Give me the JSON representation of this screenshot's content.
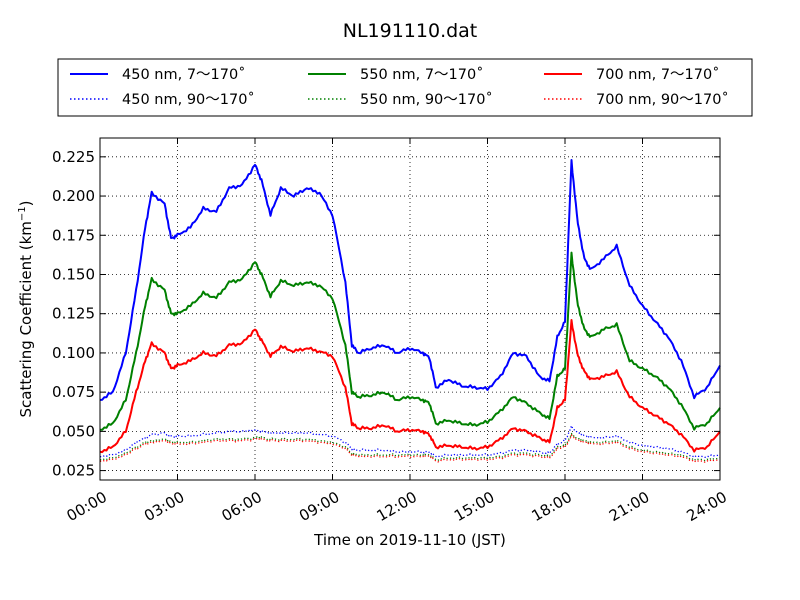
{
  "chart_data": {
    "type": "line",
    "title": "NL191110.dat",
    "xlabel": "Time on 2019-11-10 (JST)",
    "ylabel": "Scattering Coefficient (km",
    "ylabel_sup": "−1",
    "ylabel_end": ")",
    "xlim": [
      0,
      24
    ],
    "ylim": [
      0.019,
      0.237
    ],
    "x_ticks": [
      {
        "value": 0,
        "label": "00:00"
      },
      {
        "value": 3,
        "label": "03:00"
      },
      {
        "value": 6,
        "label": "06:00"
      },
      {
        "value": 9,
        "label": "09:00"
      },
      {
        "value": 12,
        "label": "12:00"
      },
      {
        "value": 15,
        "label": "15:00"
      },
      {
        "value": 18,
        "label": "18:00"
      },
      {
        "value": 21,
        "label": "21:00"
      },
      {
        "value": 24,
        "label": "24:00"
      }
    ],
    "y_ticks": [
      {
        "value": 0.025,
        "label": "0.025"
      },
      {
        "value": 0.05,
        "label": "0.050"
      },
      {
        "value": 0.075,
        "label": "0.075"
      },
      {
        "value": 0.1,
        "label": "0.100"
      },
      {
        "value": 0.125,
        "label": "0.125"
      },
      {
        "value": 0.15,
        "label": "0.150"
      },
      {
        "value": 0.175,
        "label": "0.175"
      },
      {
        "value": 0.2,
        "label": "0.200"
      },
      {
        "value": 0.225,
        "label": "0.225"
      }
    ],
    "grid": true,
    "legend_position": "top, above plot (3 columns)",
    "x": [
      0,
      0.5,
      1.0,
      1.4,
      1.75,
      2.0,
      2.5,
      2.75,
      3.0,
      3.5,
      4.0,
      4.5,
      5.0,
      5.5,
      6.0,
      6.25,
      6.6,
      7.0,
      7.5,
      8.0,
      8.5,
      9.0,
      9.5,
      9.75,
      10.0,
      10.5,
      11.0,
      11.5,
      12.0,
      12.5,
      12.75,
      13.0,
      13.5,
      14.0,
      14.5,
      15.0,
      15.5,
      16.0,
      16.5,
      17.0,
      17.4,
      17.7,
      18.0,
      18.25,
      18.5,
      18.75,
      19.0,
      19.5,
      20.0,
      20.5,
      21.0,
      21.5,
      22.0,
      22.5,
      23.0,
      23.5,
      24.0
    ],
    "series": [
      {
        "name": "450 nm, 7～170˚",
        "color": "#0000ff",
        "style": "solid",
        "values": [
          0.07,
          0.075,
          0.1,
          0.14,
          0.18,
          0.202,
          0.195,
          0.173,
          0.175,
          0.18,
          0.192,
          0.19,
          0.205,
          0.207,
          0.22,
          0.21,
          0.188,
          0.205,
          0.2,
          0.205,
          0.202,
          0.188,
          0.145,
          0.105,
          0.1,
          0.103,
          0.105,
          0.1,
          0.103,
          0.1,
          0.097,
          0.078,
          0.083,
          0.079,
          0.078,
          0.077,
          0.085,
          0.1,
          0.098,
          0.085,
          0.082,
          0.11,
          0.12,
          0.222,
          0.182,
          0.16,
          0.153,
          0.16,
          0.168,
          0.143,
          0.13,
          0.12,
          0.11,
          0.095,
          0.072,
          0.078,
          0.092
        ]
      },
      {
        "name": "550 nm, 7～170˚",
        "color": "#008000",
        "style": "solid",
        "values": [
          0.051,
          0.055,
          0.07,
          0.1,
          0.13,
          0.147,
          0.14,
          0.125,
          0.125,
          0.13,
          0.138,
          0.135,
          0.145,
          0.147,
          0.158,
          0.15,
          0.136,
          0.146,
          0.143,
          0.145,
          0.143,
          0.135,
          0.105,
          0.075,
          0.072,
          0.073,
          0.075,
          0.07,
          0.072,
          0.07,
          0.068,
          0.055,
          0.057,
          0.055,
          0.054,
          0.056,
          0.063,
          0.072,
          0.068,
          0.062,
          0.058,
          0.085,
          0.09,
          0.163,
          0.13,
          0.115,
          0.11,
          0.115,
          0.118,
          0.095,
          0.09,
          0.085,
          0.078,
          0.067,
          0.052,
          0.055,
          0.065
        ]
      },
      {
        "name": "700 nm, 7～170˚",
        "color": "#ff0000",
        "style": "solid",
        "values": [
          0.037,
          0.04,
          0.05,
          0.075,
          0.095,
          0.106,
          0.1,
          0.09,
          0.092,
          0.095,
          0.1,
          0.098,
          0.105,
          0.106,
          0.115,
          0.108,
          0.098,
          0.104,
          0.101,
          0.103,
          0.101,
          0.098,
          0.078,
          0.055,
          0.052,
          0.052,
          0.054,
          0.05,
          0.051,
          0.05,
          0.048,
          0.04,
          0.041,
          0.04,
          0.039,
          0.04,
          0.045,
          0.052,
          0.05,
          0.046,
          0.043,
          0.065,
          0.07,
          0.12,
          0.098,
          0.088,
          0.083,
          0.085,
          0.088,
          0.072,
          0.065,
          0.06,
          0.055,
          0.048,
          0.038,
          0.04,
          0.05
        ]
      },
      {
        "name": "450 nm, 90～170˚",
        "color": "#0000ff",
        "style": "dotted",
        "values": [
          0.034,
          0.035,
          0.038,
          0.043,
          0.046,
          0.048,
          0.049,
          0.047,
          0.047,
          0.047,
          0.048,
          0.049,
          0.05,
          0.05,
          0.051,
          0.05,
          0.049,
          0.049,
          0.049,
          0.049,
          0.048,
          0.047,
          0.043,
          0.039,
          0.038,
          0.038,
          0.038,
          0.037,
          0.037,
          0.037,
          0.037,
          0.034,
          0.035,
          0.035,
          0.035,
          0.035,
          0.036,
          0.038,
          0.038,
          0.037,
          0.036,
          0.042,
          0.044,
          0.053,
          0.049,
          0.047,
          0.046,
          0.046,
          0.047,
          0.043,
          0.041,
          0.04,
          0.039,
          0.037,
          0.034,
          0.034,
          0.035
        ]
      },
      {
        "name": "550 nm, 90～170˚",
        "color": "#008000",
        "style": "dotted",
        "values": [
          0.032,
          0.033,
          0.036,
          0.04,
          0.043,
          0.044,
          0.045,
          0.043,
          0.043,
          0.043,
          0.044,
          0.045,
          0.045,
          0.045,
          0.046,
          0.046,
          0.045,
          0.045,
          0.045,
          0.045,
          0.044,
          0.043,
          0.04,
          0.036,
          0.035,
          0.035,
          0.035,
          0.035,
          0.035,
          0.035,
          0.035,
          0.032,
          0.033,
          0.033,
          0.033,
          0.033,
          0.034,
          0.036,
          0.036,
          0.035,
          0.034,
          0.04,
          0.041,
          0.048,
          0.045,
          0.044,
          0.043,
          0.043,
          0.044,
          0.04,
          0.038,
          0.037,
          0.036,
          0.035,
          0.032,
          0.032,
          0.033
        ]
      },
      {
        "name": "700 nm, 90～170˚",
        "color": "#ff0000",
        "style": "dotted",
        "values": [
          0.031,
          0.032,
          0.035,
          0.039,
          0.042,
          0.043,
          0.044,
          0.042,
          0.042,
          0.042,
          0.043,
          0.044,
          0.044,
          0.044,
          0.045,
          0.045,
          0.044,
          0.044,
          0.044,
          0.044,
          0.043,
          0.042,
          0.039,
          0.035,
          0.034,
          0.034,
          0.034,
          0.034,
          0.034,
          0.034,
          0.034,
          0.031,
          0.032,
          0.032,
          0.032,
          0.032,
          0.033,
          0.035,
          0.035,
          0.034,
          0.033,
          0.039,
          0.04,
          0.047,
          0.044,
          0.043,
          0.042,
          0.042,
          0.043,
          0.039,
          0.037,
          0.036,
          0.035,
          0.034,
          0.031,
          0.031,
          0.032
        ]
      }
    ]
  }
}
